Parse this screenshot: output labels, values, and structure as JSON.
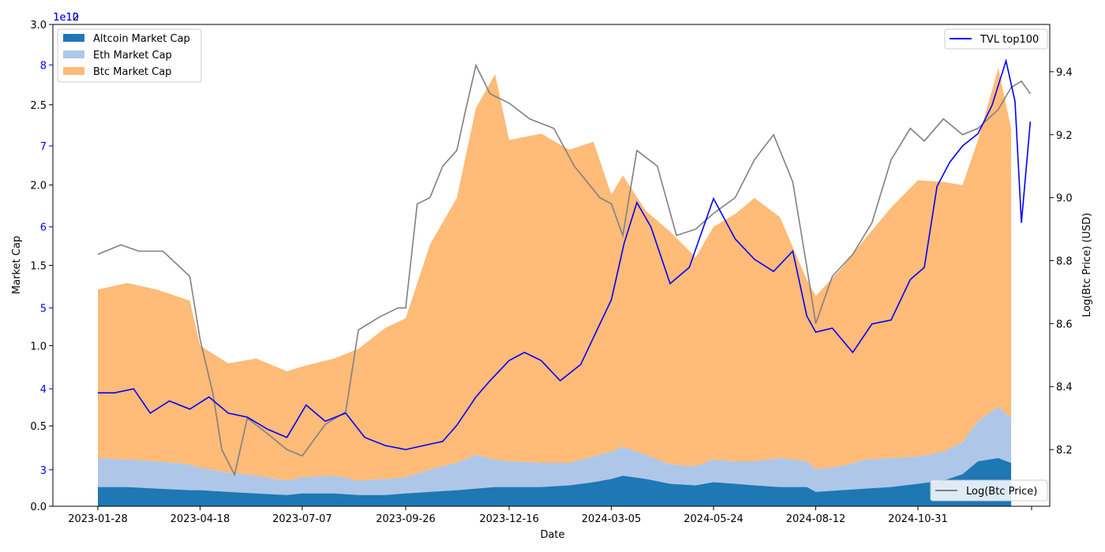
{
  "chart_data": {
    "type": "area",
    "xlabel": "Date",
    "ylabel_left": "Market Cap",
    "ylabel_right": "Log(Btc Price) (USD)",
    "offset_label_left": "1e12",
    "offset_label_tvl": "1e10",
    "x_ticks": [
      "2023-01-28",
      "2023-04-18",
      "2023-07-07",
      "2023-09-26",
      "2023-12-16",
      "2024-03-05",
      "2024-05-24",
      "2024-08-12",
      "2024-10-31"
    ],
    "x_range": [
      "2023-01-28",
      "2025-01-28"
    ],
    "y_left_ticks": [
      "0.0",
      "0.5",
      "1.0",
      "1.5",
      "2.0",
      "2.5",
      "3.0"
    ],
    "y_left_range": [
      0,
      3.0
    ],
    "y_tvl_ticks": [
      "3",
      "4",
      "5",
      "6",
      "7",
      "8"
    ],
    "y_tvl_range": [
      2.55,
      8.5
    ],
    "y_right_ticks": [
      "8.2",
      "8.4",
      "8.6",
      "8.8",
      "9.0",
      "9.2",
      "9.4"
    ],
    "y_right_range": [
      8.02,
      9.55
    ],
    "legend_left": [
      {
        "name": "Altcoin Market Cap",
        "color": "#1f77b4"
      },
      {
        "name": "Eth Market Cap",
        "color": "#aec7e8"
      },
      {
        "name": "Btc Market Cap",
        "color": "#ffbb78"
      }
    ],
    "legend_right_top": {
      "name": "TVL top100",
      "color": "#0000ff"
    },
    "legend_right_bottom": {
      "name": "Log(Btc Price)",
      "color": "#808080"
    },
    "stack_dates": [
      "2023-01-28",
      "2023-02-20",
      "2023-03-15",
      "2023-04-10",
      "2023-04-18",
      "2023-05-10",
      "2023-06-01",
      "2023-06-25",
      "2023-07-07",
      "2023-08-01",
      "2023-08-20",
      "2023-09-10",
      "2023-09-26",
      "2023-10-15",
      "2023-11-05",
      "2023-11-20",
      "2023-12-05",
      "2023-12-16",
      "2024-01-10",
      "2024-02-01",
      "2024-02-20",
      "2024-03-05",
      "2024-03-14",
      "2024-04-01",
      "2024-04-20",
      "2024-05-10",
      "2024-05-24",
      "2024-06-10",
      "2024-06-25",
      "2024-07-15",
      "2024-08-05",
      "2024-08-12",
      "2024-09-01",
      "2024-09-20",
      "2024-10-10",
      "2024-10-31",
      "2024-11-20",
      "2024-12-05",
      "2024-12-17",
      "2025-01-02",
      "2025-01-12"
    ],
    "altcoin_cap": [
      0.12,
      0.12,
      0.11,
      0.1,
      0.1,
      0.09,
      0.08,
      0.07,
      0.08,
      0.08,
      0.07,
      0.07,
      0.08,
      0.09,
      0.1,
      0.11,
      0.12,
      0.12,
      0.12,
      0.13,
      0.15,
      0.17,
      0.19,
      0.17,
      0.14,
      0.13,
      0.15,
      0.14,
      0.13,
      0.12,
      0.12,
      0.09,
      0.1,
      0.11,
      0.12,
      0.14,
      0.16,
      0.2,
      0.28,
      0.3,
      0.27
    ],
    "eth_cap": [
      0.18,
      0.17,
      0.17,
      0.16,
      0.14,
      0.12,
      0.11,
      0.09,
      0.1,
      0.11,
      0.09,
      0.1,
      0.1,
      0.14,
      0.17,
      0.21,
      0.17,
      0.16,
      0.15,
      0.14,
      0.16,
      0.17,
      0.18,
      0.15,
      0.12,
      0.12,
      0.14,
      0.14,
      0.15,
      0.18,
      0.16,
      0.14,
      0.15,
      0.18,
      0.18,
      0.17,
      0.18,
      0.2,
      0.25,
      0.32,
      0.28
    ],
    "btc_cap": [
      1.05,
      1.1,
      1.07,
      1.02,
      0.76,
      0.68,
      0.73,
      0.68,
      0.69,
      0.73,
      0.82,
      0.94,
      0.99,
      1.4,
      1.65,
      2.16,
      2.4,
      2.0,
      2.05,
      1.95,
      1.96,
      1.6,
      1.69,
      1.52,
      1.45,
      1.3,
      1.45,
      1.54,
      1.64,
      1.5,
      1.13,
      1.08,
      1.23,
      1.38,
      1.56,
      1.72,
      1.68,
      1.6,
      1.75,
      2.11,
      1.8
    ],
    "tvl_dates": [
      "2023-01-28",
      "2023-02-10",
      "2023-02-25",
      "2023-03-10",
      "2023-03-25",
      "2023-04-10",
      "2023-04-25",
      "2023-05-10",
      "2023-05-25",
      "2023-06-10",
      "2023-06-25",
      "2023-07-10",
      "2023-07-25",
      "2023-08-10",
      "2023-08-25",
      "2023-09-10",
      "2023-09-26",
      "2023-10-10",
      "2023-10-25",
      "2023-11-05",
      "2023-11-20",
      "2023-12-01",
      "2023-12-16",
      "2023-12-28",
      "2024-01-10",
      "2024-01-25",
      "2024-02-10",
      "2024-02-25",
      "2024-03-05",
      "2024-03-15",
      "2024-03-25",
      "2024-04-05",
      "2024-04-20",
      "2024-05-05",
      "2024-05-24",
      "2024-06-10",
      "2024-06-25",
      "2024-07-10",
      "2024-07-25",
      "2024-08-05",
      "2024-08-12",
      "2024-08-25",
      "2024-09-10",
      "2024-09-25",
      "2024-10-10",
      "2024-10-25",
      "2024-11-05",
      "2024-11-15",
      "2024-11-25",
      "2024-12-05",
      "2024-12-17",
      "2024-12-28",
      "2025-01-08",
      "2025-01-15",
      "2025-01-20",
      "2025-01-27"
    ],
    "tvl_top100": [
      3.95,
      3.95,
      4.0,
      3.7,
      3.85,
      3.75,
      3.9,
      3.7,
      3.65,
      3.5,
      3.4,
      3.8,
      3.6,
      3.7,
      3.4,
      3.3,
      3.25,
      3.3,
      3.35,
      3.55,
      3.9,
      4.1,
      4.35,
      4.45,
      4.35,
      4.1,
      4.3,
      4.8,
      5.1,
      5.8,
      6.3,
      6.0,
      5.3,
      5.5,
      6.35,
      5.85,
      5.6,
      5.45,
      5.7,
      4.9,
      4.7,
      4.75,
      4.45,
      4.8,
      4.85,
      5.35,
      5.5,
      6.5,
      6.8,
      7.0,
      7.15,
      7.5,
      8.05,
      7.55,
      6.05,
      7.3
    ],
    "price_dates": [
      "2023-01-28",
      "2023-02-15",
      "2023-03-01",
      "2023-03-20",
      "2023-04-10",
      "2023-04-18",
      "2023-04-28",
      "2023-05-05",
      "2023-05-15",
      "2023-05-25",
      "2023-06-10",
      "2023-06-25",
      "2023-07-07",
      "2023-07-25",
      "2023-08-10",
      "2023-08-20",
      "2023-09-05",
      "2023-09-20",
      "2023-09-26",
      "2023-10-05",
      "2023-10-15",
      "2023-10-25",
      "2023-11-05",
      "2023-11-12",
      "2023-11-20",
      "2023-12-01",
      "2023-12-16",
      "2024-01-01",
      "2024-01-20",
      "2024-02-05",
      "2024-02-25",
      "2024-03-05",
      "2024-03-14",
      "2024-03-25",
      "2024-04-10",
      "2024-04-25",
      "2024-05-10",
      "2024-05-24",
      "2024-06-10",
      "2024-06-25",
      "2024-07-10",
      "2024-07-25",
      "2024-08-05",
      "2024-08-12",
      "2024-08-25",
      "2024-09-10",
      "2024-09-25",
      "2024-10-10",
      "2024-10-25",
      "2024-11-05",
      "2024-11-20",
      "2024-12-05",
      "2024-12-17",
      "2025-01-02",
      "2025-01-12",
      "2025-01-20",
      "2025-01-27"
    ],
    "log_btc_price": [
      8.82,
      8.85,
      8.83,
      8.83,
      8.75,
      8.55,
      8.38,
      8.2,
      8.12,
      8.3,
      8.25,
      8.2,
      8.18,
      8.28,
      8.32,
      8.58,
      8.62,
      8.65,
      8.65,
      8.98,
      9.0,
      9.1,
      9.15,
      9.28,
      9.42,
      9.33,
      9.3,
      9.25,
      9.22,
      9.1,
      9.0,
      8.98,
      8.88,
      9.15,
      9.1,
      8.88,
      8.9,
      8.95,
      9.0,
      9.12,
      9.2,
      9.05,
      8.78,
      8.6,
      8.75,
      8.82,
      8.92,
      9.12,
      9.22,
      9.18,
      9.25,
      9.2,
      9.22,
      9.28,
      9.35,
      9.37,
      9.33
    ]
  }
}
